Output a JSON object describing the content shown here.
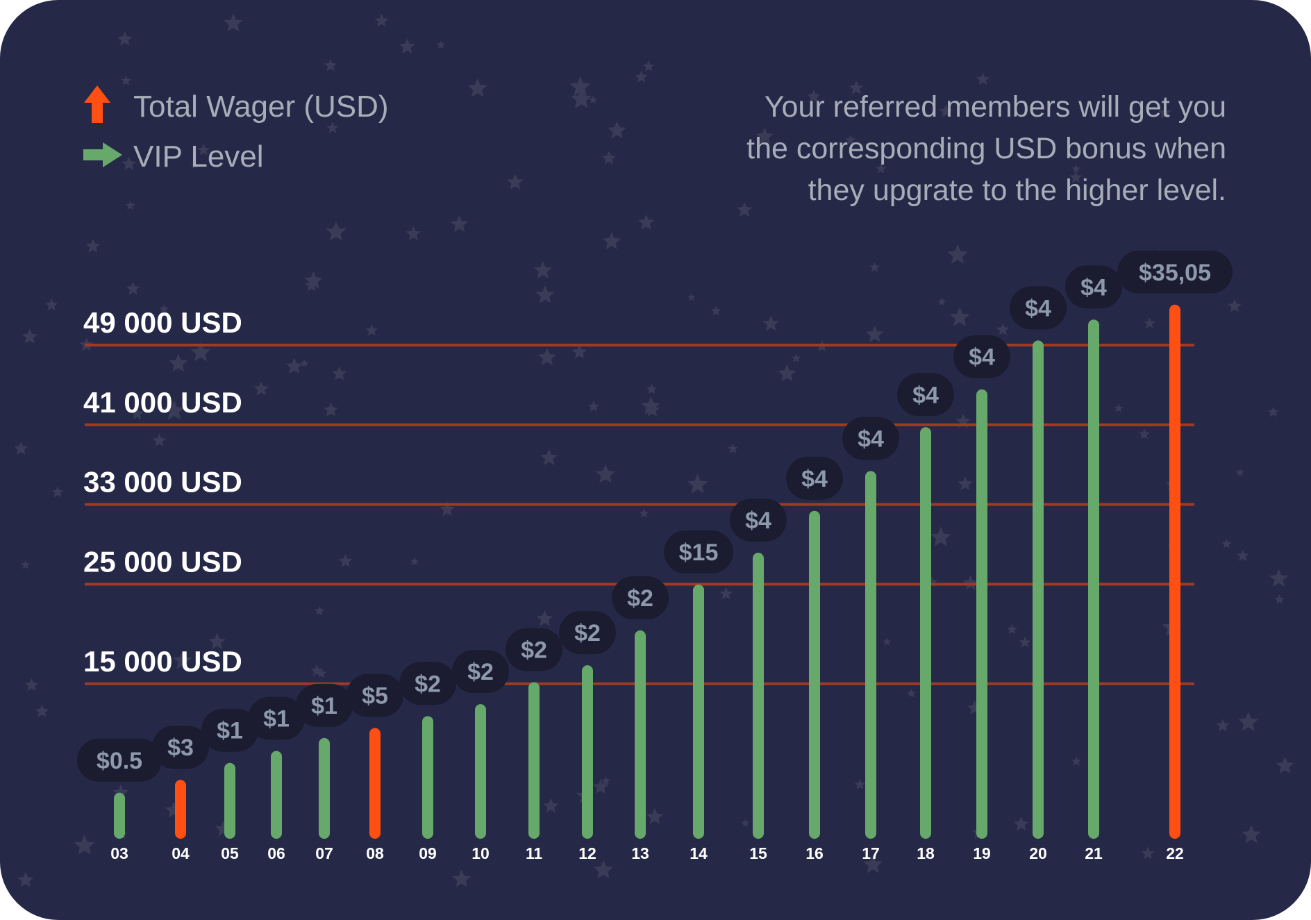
{
  "legend": {
    "items": [
      {
        "label": "Total Wager (USD)",
        "icon": "up-arrow-icon",
        "color": "#ff4f12"
      },
      {
        "label": "VIP Level",
        "icon": "right-arrow-icon",
        "color": "#67a96b"
      }
    ]
  },
  "note": {
    "lines": [
      "Your referred members will get you",
      "the corresponding USD bonus when",
      "they upgrate to the higher level."
    ]
  },
  "colors": {
    "background": "#262848",
    "green_bar": "#67a96b",
    "orange_bar": "#ff4f12",
    "threshold_line": "#a03a22",
    "bubble": "#1b1c30",
    "bubble_text": "#8e9aac",
    "text": "#ffffff",
    "muted_text": "#a7aeb8"
  },
  "chart_data": {
    "type": "bar",
    "xlabel": "",
    "ylabel": "",
    "ylim": [
      0,
      50000
    ],
    "thresholds": [
      {
        "value": 49000,
        "label": "49 000  USD"
      },
      {
        "value": 41000,
        "label": "41 000  USD"
      },
      {
        "value": 33000,
        "label": "33 000  USD"
      },
      {
        "value": 25000,
        "label": "25 000  USD"
      },
      {
        "value": 15000,
        "label": "15 000  USD"
      }
    ],
    "bars": [
      {
        "level": "03",
        "value": 3500,
        "bonus": "$0.5",
        "color": "green"
      },
      {
        "level": "04",
        "value": 4800,
        "bonus": "$3",
        "color": "orange"
      },
      {
        "level": "05",
        "value": 6500,
        "bonus": "$1",
        "color": "green"
      },
      {
        "level": "06",
        "value": 7700,
        "bonus": "$1",
        "color": "green"
      },
      {
        "level": "07",
        "value": 9000,
        "bonus": "$1",
        "color": "green"
      },
      {
        "level": "08",
        "value": 10000,
        "bonus": "$5",
        "color": "orange"
      },
      {
        "level": "09",
        "value": 11200,
        "bonus": "$2",
        "color": "green"
      },
      {
        "level": "10",
        "value": 12400,
        "bonus": "$2",
        "color": "green"
      },
      {
        "level": "11",
        "value": 14600,
        "bonus": "$2",
        "color": "green"
      },
      {
        "level": "12",
        "value": 16300,
        "bonus": "$2",
        "color": "green"
      },
      {
        "level": "13",
        "value": 19800,
        "bonus": "$2",
        "color": "green"
      },
      {
        "level": "14",
        "value": 24400,
        "bonus": "$15",
        "color": "green"
      },
      {
        "level": "15",
        "value": 27600,
        "bonus": "$4",
        "color": "green"
      },
      {
        "level": "16",
        "value": 31800,
        "bonus": "$4",
        "color": "green"
      },
      {
        "level": "17",
        "value": 35800,
        "bonus": "$4",
        "color": "green"
      },
      {
        "level": "18",
        "value": 40200,
        "bonus": "$4",
        "color": "green"
      },
      {
        "level": "19",
        "value": 44000,
        "bonus": "$4",
        "color": "green"
      },
      {
        "level": "20",
        "value": 48900,
        "bonus": "$4",
        "color": "green"
      },
      {
        "level": "21",
        "value": 51000,
        "bonus": "$4",
        "color": "green"
      },
      {
        "level": "22",
        "value": 52500,
        "bonus": "$35,05",
        "color": "orange"
      }
    ]
  }
}
